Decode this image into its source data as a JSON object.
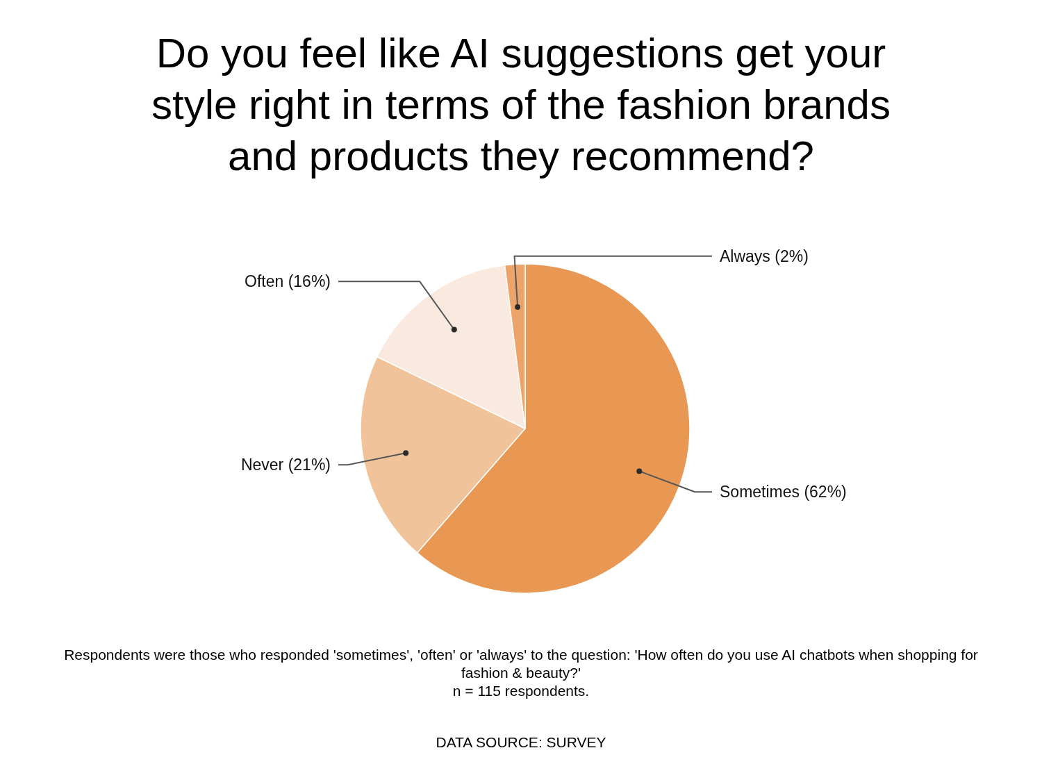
{
  "chart_data": {
    "type": "pie",
    "title": "Do you feel like AI suggestions get your style right in terms of the fashion brands and products they recommend?",
    "categories": [
      "Sometimes",
      "Never",
      "Often",
      "Always"
    ],
    "values": [
      62,
      21,
      16,
      2
    ],
    "value_labels": [
      "(62%)",
      "(21%)",
      "(16%)",
      "(2%)"
    ],
    "colors": [
      "#e99853",
      "#f0c39b",
      "#f9e9de",
      "#eca46a"
    ],
    "legend": false,
    "annotations": [
      "Respondents were those who responded 'sometimes', 'often' or 'always' to the question: 'How often do you use AI chatbots when shopping for fashion & beauty?'",
      "n = 115 respondents.",
      "DATA SOURCE: SURVEY"
    ]
  }
}
